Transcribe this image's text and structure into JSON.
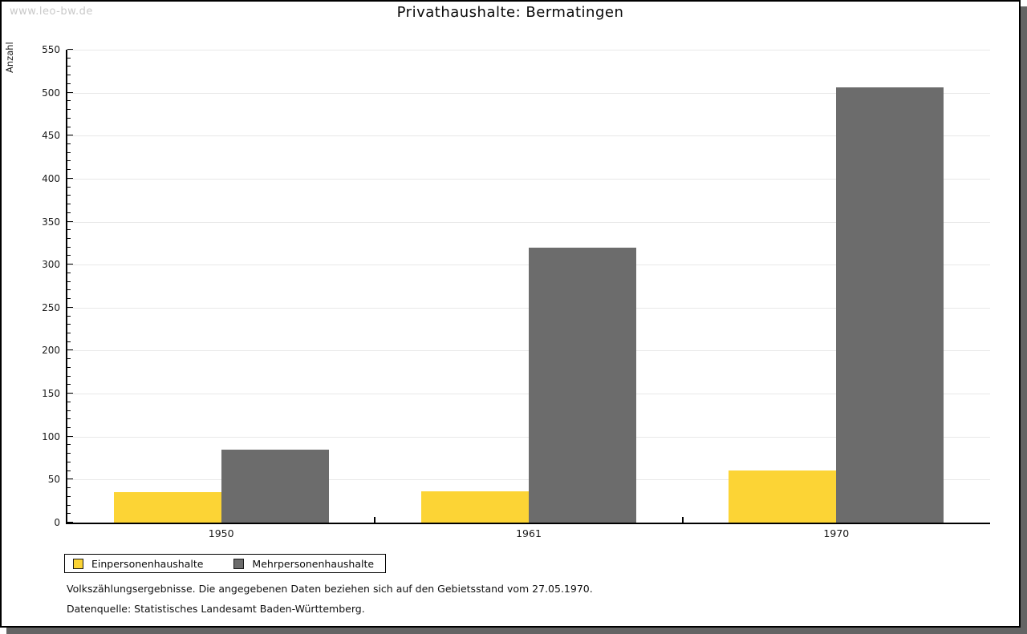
{
  "watermark": "www.leo-bw.de",
  "chart_data": {
    "type": "bar",
    "title": "Privathaushalte: Bermatingen",
    "xlabel": "",
    "ylabel": "Anzahl",
    "categories": [
      "1950",
      "1961",
      "1970"
    ],
    "series": [
      {
        "name": "Einpersonenhaushalte",
        "color": "#FCD435",
        "values": [
          35,
          36,
          61
        ]
      },
      {
        "name": "Mehrpersonenhaushalte",
        "color": "#6C6C6C",
        "values": [
          85,
          320,
          506
        ]
      }
    ],
    "ylim": [
      0,
      550
    ],
    "ytick_step": 50,
    "y_minor_step": 10,
    "grid": true,
    "legend_position": "below-left"
  },
  "footnotes": [
    "Volkszählungsergebnisse. Die angegebenen Daten beziehen sich auf den Gebietsstand vom 27.05.1970.",
    "Datenquelle: Statistisches Landesamt Baden-Württemberg."
  ]
}
